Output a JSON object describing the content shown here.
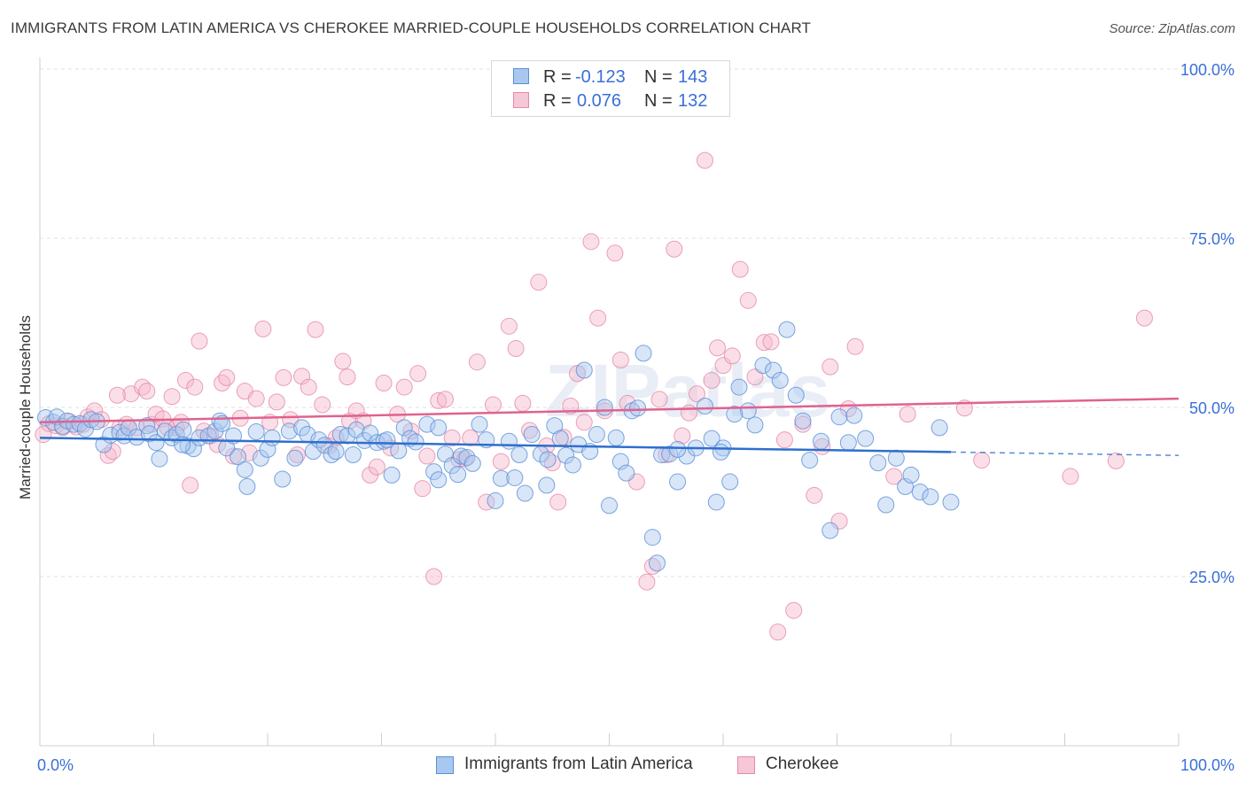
{
  "title": "IMMIGRANTS FROM LATIN AMERICA VS CHEROKEE MARRIED-COUPLE HOUSEHOLDS CORRELATION CHART",
  "source": "Source: ZipAtlas.com",
  "watermark": "ZIPatlas",
  "legend_top": {
    "r_label": "R =",
    "n_label": "N =",
    "series1_r": "-0.123",
    "series1_n": "143",
    "series2_r": "0.076",
    "series2_n": "132"
  },
  "legend_bottom": {
    "series1": "Immigrants from Latin America",
    "series2": "Cherokee"
  },
  "colors": {
    "blue_fill": "#a9c8f0",
    "blue_stroke": "#5b8fd6",
    "blue_line": "#2f6fcc",
    "pink_fill": "#f6b9cc",
    "pink_stroke": "#e58aa8",
    "pink_line": "#e0628e",
    "tick_text": "#3a6fd8"
  },
  "chart_data": {
    "type": "scatter",
    "title": "IMMIGRANTS FROM LATIN AMERICA VS CHEROKEE MARRIED-COUPLE HOUSEHOLDS CORRELATION CHART",
    "xlabel": "",
    "ylabel": "Married-couple Households",
    "xlim": [
      0,
      100
    ],
    "ylim": [
      0,
      100
    ],
    "x_tick_labels": [
      "0.0%",
      "100.0%"
    ],
    "y_ticks": [
      25,
      50,
      75,
      100
    ],
    "y_tick_labels": [
      "25.0%",
      "50.0%",
      "75.0%",
      "100.0%"
    ],
    "grid": true,
    "legend": "top-center",
    "series": [
      {
        "name": "Immigrants from Latin America",
        "r": -0.123,
        "n": 143,
        "trend": {
          "x0": 0,
          "y0": 45.5,
          "x1": 80,
          "y1": 43.4,
          "dashed_to": 100,
          "dashed_y": 42.9
        },
        "points": [
          [
            0.5,
            48.5
          ],
          [
            1.2,
            47.8
          ],
          [
            1.5,
            48.6
          ],
          [
            2.0,
            47.2
          ],
          [
            2.4,
            48.0
          ],
          [
            3.0,
            47.5
          ],
          [
            3.5,
            47.6
          ],
          [
            4.0,
            46.8
          ],
          [
            4.5,
            48.2
          ],
          [
            5.0,
            47.9
          ],
          [
            5.6,
            44.5
          ],
          [
            6.2,
            45.9
          ],
          [
            7.0,
            46.3
          ],
          [
            7.4,
            45.8
          ],
          [
            7.8,
            47.0
          ],
          [
            8.5,
            45.6
          ],
          [
            9.4,
            47.3
          ],
          [
            9.6,
            46.1
          ],
          [
            10.2,
            44.8
          ],
          [
            10.5,
            42.4
          ],
          [
            11.0,
            46.5
          ],
          [
            11.6,
            45.5
          ],
          [
            12.0,
            46.0
          ],
          [
            12.6,
            46.7
          ],
          [
            13.0,
            44.3
          ],
          [
            13.5,
            43.9
          ],
          [
            14.0,
            45.5
          ],
          [
            14.8,
            45.8
          ],
          [
            15.4,
            46.5
          ],
          [
            15.8,
            48.0
          ],
          [
            16.4,
            44.0
          ],
          [
            17.0,
            45.8
          ],
          [
            17.4,
            42.7
          ],
          [
            18.0,
            40.8
          ],
          [
            18.2,
            38.3
          ],
          [
            19.0,
            46.4
          ],
          [
            19.4,
            42.5
          ],
          [
            20.0,
            43.8
          ],
          [
            20.4,
            45.5
          ],
          [
            21.3,
            39.4
          ],
          [
            21.9,
            46.5
          ],
          [
            22.4,
            42.5
          ],
          [
            23.0,
            47.0
          ],
          [
            23.5,
            46.0
          ],
          [
            24.0,
            43.5
          ],
          [
            24.5,
            45.2
          ],
          [
            25.0,
            44.4
          ],
          [
            25.6,
            43.0
          ],
          [
            26.4,
            46.0
          ],
          [
            27.0,
            45.8
          ],
          [
            27.8,
            46.7
          ],
          [
            28.5,
            45.1
          ],
          [
            29.0,
            46.2
          ],
          [
            29.6,
            44.8
          ],
          [
            30.2,
            45.0
          ],
          [
            30.9,
            40.0
          ],
          [
            31.5,
            43.6
          ],
          [
            32.0,
            47.0
          ],
          [
            32.5,
            45.4
          ],
          [
            33.0,
            44.9
          ],
          [
            34.0,
            47.5
          ],
          [
            34.6,
            40.5
          ],
          [
            35.0,
            39.3
          ],
          [
            35.6,
            43.1
          ],
          [
            36.2,
            41.4
          ],
          [
            36.7,
            40.1
          ],
          [
            37.0,
            42.8
          ],
          [
            37.5,
            42.6
          ],
          [
            38.0,
            41.7
          ],
          [
            38.6,
            47.5
          ],
          [
            39.2,
            45.2
          ],
          [
            40.0,
            36.2
          ],
          [
            40.5,
            39.5
          ],
          [
            41.2,
            45.0
          ],
          [
            41.7,
            39.6
          ],
          [
            42.1,
            43.0
          ],
          [
            42.6,
            37.3
          ],
          [
            43.2,
            46.0
          ],
          [
            44.0,
            43.1
          ],
          [
            44.6,
            42.3
          ],
          [
            45.2,
            47.3
          ],
          [
            45.7,
            45.4
          ],
          [
            46.2,
            42.9
          ],
          [
            46.8,
            41.5
          ],
          [
            47.3,
            44.5
          ],
          [
            47.8,
            55.5
          ],
          [
            48.3,
            43.5
          ],
          [
            48.9,
            46.0
          ],
          [
            49.6,
            50.0
          ],
          [
            50.0,
            35.5
          ],
          [
            50.6,
            45.5
          ],
          [
            51.0,
            42.0
          ],
          [
            51.5,
            40.3
          ],
          [
            52.0,
            49.5
          ],
          [
            52.5,
            49.9
          ],
          [
            53.0,
            58.0
          ],
          [
            53.8,
            30.8
          ],
          [
            54.2,
            27.0
          ],
          [
            54.6,
            43.0
          ],
          [
            55.3,
            43.1
          ],
          [
            56.0,
            39.0
          ],
          [
            56.8,
            42.8
          ],
          [
            57.6,
            44.0
          ],
          [
            58.4,
            50.2
          ],
          [
            59.0,
            45.4
          ],
          [
            59.4,
            36.0
          ],
          [
            60.0,
            44.0
          ],
          [
            60.6,
            39.0
          ],
          [
            61.4,
            53.0
          ],
          [
            62.2,
            49.5
          ],
          [
            62.8,
            47.4
          ],
          [
            63.5,
            56.2
          ],
          [
            64.4,
            55.5
          ],
          [
            65.0,
            54.0
          ],
          [
            65.6,
            61.5
          ],
          [
            66.4,
            51.8
          ],
          [
            67.0,
            48.0
          ],
          [
            67.6,
            42.2
          ],
          [
            68.6,
            45.0
          ],
          [
            69.4,
            31.8
          ],
          [
            70.2,
            48.6
          ],
          [
            71.0,
            44.8
          ],
          [
            71.5,
            48.8
          ],
          [
            72.5,
            45.4
          ],
          [
            73.6,
            41.8
          ],
          [
            74.3,
            35.6
          ],
          [
            75.2,
            42.5
          ],
          [
            76.0,
            38.3
          ],
          [
            76.5,
            40.0
          ],
          [
            77.3,
            37.5
          ],
          [
            78.2,
            36.8
          ],
          [
            79.0,
            47.0
          ],
          [
            80.0,
            36.0
          ],
          [
            59.8,
            43.4
          ],
          [
            26.0,
            43.5
          ],
          [
            35.0,
            47.0
          ],
          [
            27.5,
            43.0
          ],
          [
            56.0,
            43.8
          ],
          [
            44.5,
            38.5
          ],
          [
            16.0,
            47.6
          ],
          [
            12.5,
            44.5
          ],
          [
            30.5,
            45.2
          ],
          [
            61.0,
            49.0
          ]
        ]
      },
      {
        "name": "Cherokee",
        "r": 0.076,
        "n": 132,
        "trend": {
          "x0": 0,
          "y0": 47.8,
          "x1": 100,
          "y1": 51.3
        },
        "points": [
          [
            0.3,
            46.0
          ],
          [
            0.8,
            47.6
          ],
          [
            1.4,
            47.3
          ],
          [
            2.0,
            47.0
          ],
          [
            2.6,
            47.9
          ],
          [
            3.2,
            47.1
          ],
          [
            3.8,
            47.5
          ],
          [
            4.2,
            48.6
          ],
          [
            4.8,
            49.5
          ],
          [
            5.4,
            48.2
          ],
          [
            6.0,
            42.9
          ],
          [
            6.4,
            43.5
          ],
          [
            7.0,
            47.0
          ],
          [
            7.6,
            47.5
          ],
          [
            8.0,
            52.0
          ],
          [
            8.5,
            47.0
          ],
          [
            9.0,
            53.0
          ],
          [
            9.4,
            52.4
          ],
          [
            9.8,
            47.5
          ],
          [
            10.2,
            49.0
          ],
          [
            10.8,
            48.3
          ],
          [
            11.2,
            47.0
          ],
          [
            11.6,
            51.6
          ],
          [
            12.0,
            47.0
          ],
          [
            12.4,
            47.8
          ],
          [
            12.8,
            54.0
          ],
          [
            13.2,
            38.5
          ],
          [
            13.6,
            53.0
          ],
          [
            14.0,
            59.8
          ],
          [
            14.4,
            46.5
          ],
          [
            15.0,
            45.8
          ],
          [
            15.6,
            44.5
          ],
          [
            16.0,
            53.6
          ],
          [
            16.4,
            54.4
          ],
          [
            17.0,
            42.8
          ],
          [
            17.6,
            48.4
          ],
          [
            18.0,
            52.4
          ],
          [
            18.4,
            43.3
          ],
          [
            19.0,
            51.3
          ],
          [
            19.6,
            61.6
          ],
          [
            20.2,
            47.8
          ],
          [
            20.8,
            50.8
          ],
          [
            21.4,
            54.4
          ],
          [
            22.0,
            48.2
          ],
          [
            22.6,
            43.0
          ],
          [
            23.0,
            54.6
          ],
          [
            23.6,
            53.0
          ],
          [
            24.2,
            61.5
          ],
          [
            24.8,
            50.4
          ],
          [
            25.4,
            44.3
          ],
          [
            26.0,
            45.5
          ],
          [
            26.6,
            56.8
          ],
          [
            27.2,
            48.0
          ],
          [
            27.8,
            49.5
          ],
          [
            28.4,
            48.0
          ],
          [
            29.0,
            40.0
          ],
          [
            29.6,
            41.2
          ],
          [
            30.2,
            53.6
          ],
          [
            30.8,
            44.0
          ],
          [
            31.4,
            49.0
          ],
          [
            32.0,
            53.0
          ],
          [
            32.6,
            46.5
          ],
          [
            33.2,
            55.0
          ],
          [
            34.0,
            42.8
          ],
          [
            34.6,
            25.0
          ],
          [
            35.0,
            51.0
          ],
          [
            35.6,
            51.2
          ],
          [
            36.2,
            45.5
          ],
          [
            36.8,
            42.3
          ],
          [
            37.3,
            42.4
          ],
          [
            37.8,
            45.5
          ],
          [
            38.4,
            56.7
          ],
          [
            39.2,
            36.0
          ],
          [
            39.8,
            50.4
          ],
          [
            40.5,
            42.0
          ],
          [
            41.2,
            62.0
          ],
          [
            41.8,
            58.7
          ],
          [
            42.4,
            50.6
          ],
          [
            43.0,
            46.6
          ],
          [
            43.8,
            68.5
          ],
          [
            44.5,
            44.3
          ],
          [
            45.0,
            41.8
          ],
          [
            45.5,
            36.0
          ],
          [
            46.0,
            45.6
          ],
          [
            46.6,
            50.2
          ],
          [
            47.2,
            55.0
          ],
          [
            47.8,
            47.8
          ],
          [
            48.4,
            74.5
          ],
          [
            49.0,
            63.2
          ],
          [
            49.6,
            49.5
          ],
          [
            50.5,
            72.8
          ],
          [
            51.0,
            57.0
          ],
          [
            51.6,
            50.6
          ],
          [
            52.4,
            39.0
          ],
          [
            53.3,
            24.2
          ],
          [
            53.8,
            26.5
          ],
          [
            54.4,
            51.2
          ],
          [
            55.0,
            43.0
          ],
          [
            55.7,
            73.4
          ],
          [
            56.4,
            45.8
          ],
          [
            57.0,
            49.2
          ],
          [
            57.7,
            52.0
          ],
          [
            58.4,
            86.5
          ],
          [
            59.0,
            54.0
          ],
          [
            59.5,
            58.8
          ],
          [
            60.0,
            56.2
          ],
          [
            60.8,
            57.6
          ],
          [
            61.5,
            70.4
          ],
          [
            62.2,
            65.8
          ],
          [
            62.8,
            54.5
          ],
          [
            63.6,
            59.6
          ],
          [
            64.2,
            59.7
          ],
          [
            64.8,
            16.8
          ],
          [
            65.4,
            45.2
          ],
          [
            66.2,
            20.0
          ],
          [
            67.0,
            47.5
          ],
          [
            68.0,
            37.0
          ],
          [
            68.7,
            44.2
          ],
          [
            69.4,
            56.0
          ],
          [
            70.2,
            33.2
          ],
          [
            71.0,
            49.8
          ],
          [
            71.6,
            59.0
          ],
          [
            75.0,
            39.8
          ],
          [
            76.2,
            49.0
          ],
          [
            81.2,
            49.9
          ],
          [
            82.7,
            42.2
          ],
          [
            90.5,
            39.8
          ],
          [
            94.5,
            42.1
          ],
          [
            97.0,
            63.2
          ],
          [
            6.8,
            51.8
          ],
          [
            33.6,
            38.0
          ],
          [
            27.0,
            54.5
          ]
        ]
      }
    ]
  }
}
